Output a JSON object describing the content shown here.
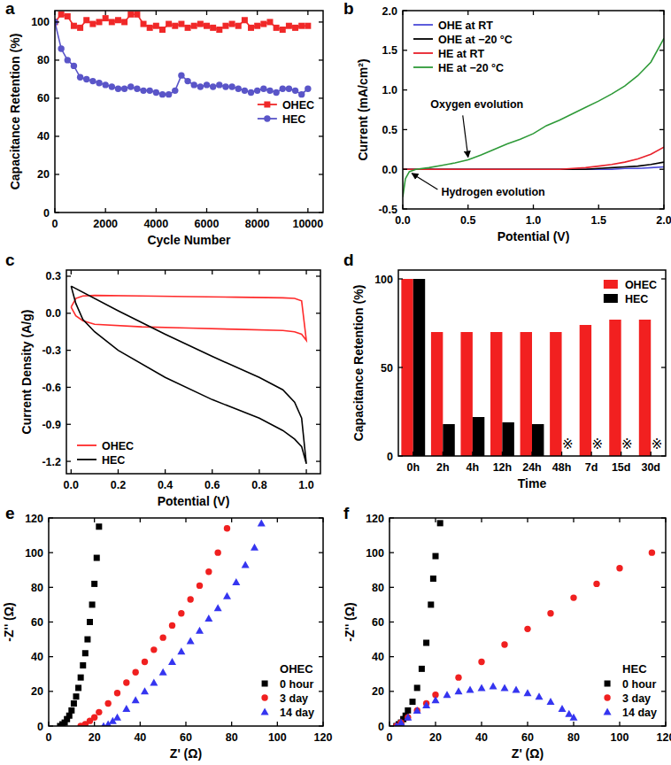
{
  "chart_data": [
    {
      "panel_label": "a",
      "type": "line",
      "x_label": "Cycle Number",
      "y_label": "Capacitance Retention (%)",
      "x": [
        0,
        250,
        500,
        750,
        1000,
        1250,
        1500,
        1750,
        2000,
        2250,
        2500,
        2750,
        3000,
        3250,
        3500,
        3750,
        4000,
        4250,
        4500,
        4750,
        5000,
        5250,
        5500,
        5750,
        6000,
        6250,
        6500,
        6750,
        7000,
        7250,
        7500,
        7750,
        8000,
        8250,
        8500,
        8750,
        9000,
        9250,
        9500,
        9750,
        10000
      ],
      "series": [
        {
          "name": "OHEC",
          "color": "#f02828",
          "marker": "square",
          "line_style": "solid",
          "values": [
            100,
            104,
            103,
            98,
            97,
            101,
            99,
            100,
            102,
            100,
            101,
            100,
            104,
            104,
            99,
            97,
            98,
            96,
            99,
            98,
            99,
            97,
            98,
            99,
            98,
            97,
            96,
            98,
            99,
            98,
            101,
            97,
            98,
            99,
            100,
            97,
            96,
            98,
            97,
            98,
            98
          ]
        },
        {
          "name": "HEC",
          "color": "#5a55c8",
          "marker": "circle",
          "line_style": "solid",
          "values": [
            100,
            86,
            80,
            77,
            71,
            70,
            69,
            68,
            67,
            66,
            65,
            65,
            66,
            65,
            64,
            64,
            63,
            62,
            62,
            64,
            72,
            69,
            67,
            66,
            67,
            66,
            67,
            66,
            66,
            65,
            64,
            63,
            64,
            65,
            64,
            63,
            65,
            65,
            64,
            62,
            65
          ]
        }
      ],
      "xlim": [
        0,
        10600
      ],
      "xticks": [
        0,
        2000,
        4000,
        6000,
        8000,
        10000
      ],
      "ylim": [
        0,
        106
      ],
      "yticks": [
        0,
        20,
        40,
        60,
        80,
        100
      ],
      "grid": false,
      "legend": "right"
    },
    {
      "panel_label": "b",
      "type": "line",
      "x_label": "Potential (V)",
      "y_label": "Current (mA/cm²)",
      "x": [
        0,
        0.02,
        0.05,
        0.1,
        0.2,
        0.3,
        0.4,
        0.5,
        0.6,
        0.7,
        0.8,
        0.9,
        1.0,
        1.1,
        1.2,
        1.3,
        1.4,
        1.5,
        1.6,
        1.7,
        1.8,
        1.9,
        2.0
      ],
      "series": [
        {
          "name": "OHE at RT",
          "color": "#4b4bd8",
          "values": [
            0,
            0,
            0,
            0,
            0,
            0,
            0,
            0,
            0,
            0,
            0,
            0,
            0,
            0,
            0,
            0,
            0,
            0,
            0,
            0.01,
            0.01,
            0.02,
            0.03
          ]
        },
        {
          "name": "OHE at −20 °C",
          "color": "#000000",
          "values": [
            0,
            0,
            0,
            0,
            0,
            0,
            0,
            0,
            0,
            0,
            0,
            0,
            0,
            0,
            0,
            0,
            0,
            0.01,
            0.02,
            0.03,
            0.04,
            0.06,
            0.09
          ]
        },
        {
          "name": "HE at RT",
          "color": "#e8202a",
          "values": [
            0,
            0,
            0,
            0,
            0,
            0,
            0,
            0,
            0,
            0,
            0,
            0,
            0,
            0,
            0,
            0.01,
            0.02,
            0.04,
            0.06,
            0.09,
            0.13,
            0.19,
            0.28
          ]
        },
        {
          "name": "HE at −20 °C",
          "color": "#2e9a38",
          "values": [
            -0.35,
            -0.12,
            -0.03,
            0.0,
            0.02,
            0.05,
            0.08,
            0.12,
            0.18,
            0.25,
            0.32,
            0.38,
            0.45,
            0.55,
            0.62,
            0.7,
            0.78,
            0.86,
            0.95,
            1.05,
            1.18,
            1.35,
            1.65
          ]
        }
      ],
      "annotations": [
        {
          "text": "Oxygen evolution",
          "x": 0.5,
          "y": 0.12
        },
        {
          "text": "Hydrogen evolution",
          "x": 0.05,
          "y": -0.03
        }
      ],
      "xlim": [
        0,
        2
      ],
      "xticks": [
        {
          "value": 0,
          "label": "0.0"
        },
        0.5,
        {
          "value": 1,
          "label": "1.0"
        },
        1.5,
        {
          "value": 2,
          "label": "2.0"
        }
      ],
      "ylim": [
        -0.5,
        2.0
      ],
      "yticks": [
        -0.5,
        {
          "value": 0,
          "label": "0.0"
        },
        0.5,
        {
          "value": 1,
          "label": "1.0"
        },
        1.5,
        {
          "value": 2,
          "label": "2.0"
        }
      ],
      "grid": false,
      "legend": "upper left"
    },
    {
      "panel_label": "c",
      "type": "line",
      "x_label": "Potential (V)",
      "y_label": "Current Density (A/g)",
      "series": [
        {
          "name": "OHEC",
          "color": "#ff2a2a",
          "x": [
            0,
            0.02,
            0.05,
            0.1,
            0.3,
            0.5,
            0.7,
            0.9,
            0.95,
            0.98,
            1.0,
            0.98,
            0.95,
            0.9,
            0.7,
            0.5,
            0.3,
            0.1,
            0.05,
            0.02,
            0
          ],
          "values": [
            0.05,
            0.12,
            0.14,
            0.145,
            0.14,
            0.135,
            0.13,
            0.125,
            0.12,
            0.1,
            -0.22,
            -0.17,
            -0.15,
            -0.14,
            -0.13,
            -0.12,
            -0.11,
            -0.09,
            -0.06,
            -0.02,
            0.05
          ]
        },
        {
          "name": "HEC",
          "color": "#000000",
          "x": [
            0,
            0.2,
            0.4,
            0.6,
            0.8,
            0.9,
            0.95,
            0.98,
            1.0,
            0.98,
            0.95,
            0.9,
            0.8,
            0.6,
            0.4,
            0.2,
            0.1,
            0.05,
            0.02,
            0
          ],
          "values": [
            0.22,
            0.02,
            -0.17,
            -0.35,
            -0.52,
            -0.62,
            -0.72,
            -0.85,
            -1.22,
            -1.08,
            -1.02,
            -0.95,
            -0.85,
            -0.7,
            -0.52,
            -0.3,
            -0.15,
            -0.05,
            0.08,
            0.22
          ]
        }
      ],
      "xlim": [
        -0.02,
        1.06
      ],
      "xticks": [
        {
          "value": 0,
          "label": "0.0"
        },
        0.2,
        0.4,
        0.6,
        0.8,
        {
          "value": 1,
          "label": "1.0"
        }
      ],
      "ylim": [
        -1.3,
        0.35
      ],
      "yticks": [
        -1.2,
        -0.9,
        -0.6,
        -0.3,
        {
          "value": 0,
          "label": "0.0"
        },
        0.3
      ],
      "grid": false,
      "legend": "lower left"
    },
    {
      "panel_label": "d",
      "type": "bar",
      "x_label": "Time",
      "y_label": "Capacitance Retention (%)",
      "categories": [
        "0h",
        "2h",
        "4h",
        "12h",
        "24h",
        "48h",
        "7d",
        "15d",
        "30d"
      ],
      "series": [
        {
          "name": "OHEC",
          "color": "#f22020",
          "values": [
            100,
            70,
            70,
            70,
            70,
            70,
            74,
            77,
            77
          ]
        },
        {
          "name": "HEC",
          "color": "#000000",
          "values": [
            100,
            18,
            22,
            19,
            18,
            null,
            null,
            null,
            null
          ]
        }
      ],
      "annotations": [
        {
          "text": "※",
          "category": "48h",
          "series": "HEC"
        },
        {
          "text": "※",
          "category": "7d",
          "series": "HEC"
        },
        {
          "text": "※",
          "category": "15d",
          "series": "HEC"
        },
        {
          "text": "※",
          "category": "30d",
          "series": "HEC"
        }
      ],
      "ylim": [
        0,
        105
      ],
      "yticks": [
        0,
        50,
        100
      ],
      "grid": false,
      "legend": "upper right"
    },
    {
      "panel_label": "e",
      "type": "scatter",
      "title": "OHEC",
      "x_label": "Z' (Ω)",
      "y_label": "-Z'' (Ω)",
      "series": [
        {
          "name": "0 hour",
          "color": "#000000",
          "marker": "square",
          "x": [
            5,
            6,
            7,
            8,
            9,
            10,
            11,
            12,
            13,
            14,
            15,
            16,
            17,
            18,
            19,
            20,
            21,
            22
          ],
          "values": [
            0,
            1,
            2,
            4,
            6,
            9,
            13,
            17,
            22,
            28,
            35,
            42,
            50,
            60,
            70,
            82,
            97,
            115
          ]
        },
        {
          "name": "3 day",
          "color": "#f02020",
          "marker": "circle",
          "x": [
            14,
            16,
            18,
            20,
            22,
            26,
            30,
            34,
            38,
            42,
            46,
            50,
            54,
            58,
            62,
            66,
            70,
            74,
            78
          ],
          "values": [
            0,
            1,
            3,
            5,
            8,
            13,
            19,
            25,
            31,
            37,
            44,
            51,
            58,
            65,
            73,
            81,
            89,
            100,
            114
          ]
        },
        {
          "name": "14 day",
          "color": "#3535f0",
          "marker": "triangle",
          "x": [
            24,
            26,
            28,
            30,
            34,
            38,
            42,
            46,
            50,
            54,
            58,
            62,
            66,
            70,
            74,
            78,
            82,
            86,
            90,
            93
          ],
          "values": [
            0,
            1,
            3,
            5,
            10,
            15,
            20,
            25,
            31,
            37,
            43,
            49,
            55,
            62,
            68,
            75,
            83,
            93,
            103,
            117
          ]
        }
      ],
      "xlim": [
        0,
        120
      ],
      "xticks": [
        0,
        20,
        40,
        60,
        80,
        100,
        120
      ],
      "ylim": [
        0,
        120
      ],
      "yticks": [
        0,
        20,
        40,
        60,
        80,
        100,
        120
      ],
      "grid": false,
      "legend": "lower right"
    },
    {
      "panel_label": "f",
      "type": "scatter",
      "title": "HEC",
      "x_label": "Z' (Ω)",
      "y_label": "-Z'' (Ω)",
      "series": [
        {
          "name": "0 hour",
          "color": "#000000",
          "marker": "square",
          "x": [
            3,
            4,
            5,
            6,
            7,
            8,
            10,
            12,
            14,
            16,
            18,
            19,
            20,
            22
          ],
          "values": [
            0,
            1,
            2,
            4,
            6,
            9,
            14,
            22,
            33,
            48,
            70,
            85,
            98,
            117
          ]
        },
        {
          "name": "3 day",
          "color": "#f02020",
          "marker": "circle",
          "x": [
            3,
            5,
            8,
            12,
            16,
            20,
            30,
            40,
            50,
            60,
            70,
            80,
            90,
            100,
            114
          ],
          "values": [
            0,
            2,
            5,
            9,
            13,
            18,
            28,
            37,
            47,
            56,
            65,
            74,
            82,
            91,
            100
          ]
        },
        {
          "name": "14 day",
          "color": "#3535f0",
          "marker": "triangle",
          "x": [
            3,
            5,
            8,
            12,
            16,
            20,
            25,
            30,
            35,
            40,
            45,
            50,
            55,
            60,
            65,
            70,
            75,
            78,
            80
          ],
          "values": [
            0,
            2,
            5,
            9,
            12,
            15,
            18,
            20,
            21,
            22,
            23,
            22,
            21,
            19,
            17,
            14,
            10,
            7,
            5
          ]
        }
      ],
      "xlim": [
        0,
        120
      ],
      "xticks": [
        0,
        20,
        40,
        60,
        80,
        100,
        120
      ],
      "ylim": [
        0,
        120
      ],
      "yticks": [
        0,
        20,
        40,
        60,
        80,
        100,
        120
      ],
      "grid": false,
      "legend": "lower right"
    }
  ]
}
